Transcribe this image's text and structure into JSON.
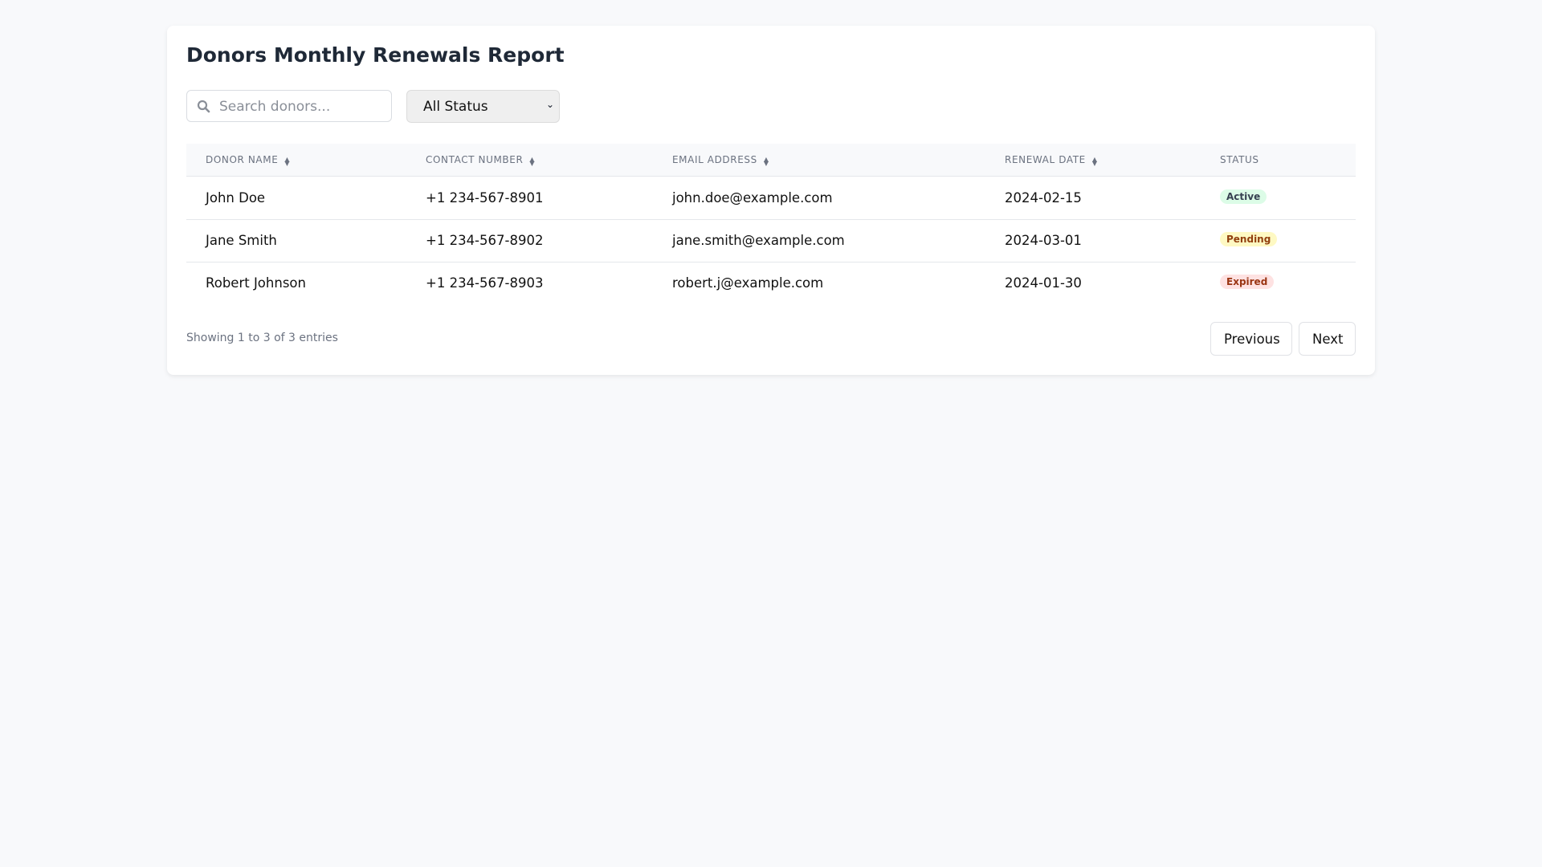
{
  "title": "Donors Monthly Renewals Report",
  "search": {
    "placeholder": "Search donors...",
    "value": ""
  },
  "filter": {
    "selected": "All Status"
  },
  "table": {
    "columns": [
      {
        "label": "DONOR NAME",
        "sortable": true
      },
      {
        "label": "CONTACT NUMBER",
        "sortable": true
      },
      {
        "label": "EMAIL ADDRESS",
        "sortable": true
      },
      {
        "label": "RENEWAL DATE",
        "sortable": true
      },
      {
        "label": "STATUS",
        "sortable": false
      }
    ],
    "rows": [
      {
        "name": "John Doe",
        "phone": "+1 234-567-8901",
        "email": "john.doe@example.com",
        "date": "2024-02-15",
        "status": "Active"
      },
      {
        "name": "Jane Smith",
        "phone": "+1 234-567-8902",
        "email": "jane.smith@example.com",
        "date": "2024-03-01",
        "status": "Pending"
      },
      {
        "name": "Robert Johnson",
        "phone": "+1 234-567-8903",
        "email": "robert.j@example.com",
        "date": "2024-01-30",
        "status": "Expired"
      }
    ]
  },
  "status_colors": {
    "Active": {
      "bg": "#dcfce7",
      "fg": "#374151"
    },
    "Pending": {
      "bg": "#fef9c3",
      "fg": "#92400e"
    },
    "Expired": {
      "bg": "#fee2e2",
      "fg": "#9a3412"
    }
  },
  "footer": {
    "summary": "Showing 1 to 3 of 3 entries",
    "previous": "Previous",
    "next": "Next"
  }
}
